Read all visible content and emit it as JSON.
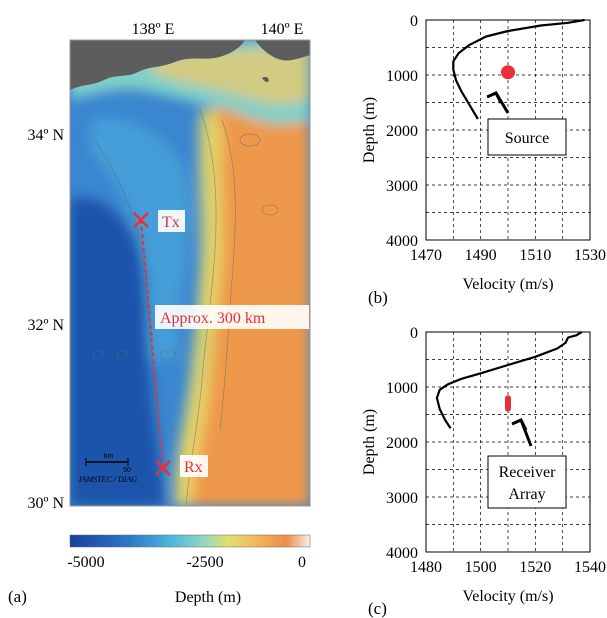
{
  "map": {
    "panel_label": "(a)",
    "lon_labels": [
      "138º E",
      "140º E"
    ],
    "lat_labels": [
      "34º N",
      "32º N",
      "30º N"
    ],
    "tx_label": "Tx",
    "rx_label": "Rx",
    "distance_label": "Approx. 300 km",
    "credit": "JAMSTEC / DIAG",
    "scale_unit": "km",
    "scale_value": "50",
    "colorbar": {
      "ticks": [
        "-5000",
        "-2500",
        "0"
      ],
      "label": "Depth (m)"
    },
    "colors": {
      "deep": "#1f4fa8",
      "mid": "#4ba3d8",
      "shelf": "#7fd0c9",
      "yellow": "#e7de6a",
      "orange": "#ef9a4a",
      "land": "#5f5f5f",
      "marker": "#e8303a"
    }
  },
  "chart_data": [
    {
      "type": "line",
      "panel_label": "(b)",
      "xlabel": "Velocity (m/s)",
      "ylabel": "Depth (m)",
      "xlim": [
        1470,
        1530
      ],
      "ylim": [
        4000,
        0
      ],
      "xticks": [
        "1470",
        "1490",
        "1510",
        "1530"
      ],
      "yticks": [
        "0",
        "1000",
        "2000",
        "3000",
        "4000"
      ],
      "grid": true,
      "series": [
        {
          "x": [
            1528,
            1522,
            1512,
            1500,
            1492,
            1486,
            1482,
            1480,
            1480,
            1481,
            1483,
            1486,
            1489
          ],
          "y": [
            0,
            50,
            100,
            200,
            300,
            450,
            600,
            750,
            900,
            1100,
            1300,
            1550,
            1800
          ]
        }
      ],
      "markers": [
        {
          "x": 1500,
          "y": 950,
          "label": "Source"
        }
      ]
    },
    {
      "type": "line",
      "panel_label": "(c)",
      "xlabel": "Velocity (m/s)",
      "ylabel": "Depth (m)",
      "xlim": [
        1480,
        1540
      ],
      "ylim": [
        4000,
        0
      ],
      "xticks": [
        "1480",
        "1500",
        "1520",
        "1540"
      ],
      "yticks": [
        "0",
        "1000",
        "2000",
        "3000",
        "4000"
      ],
      "grid": true,
      "series": [
        {
          "x": [
            1537,
            1535,
            1532,
            1531,
            1528,
            1520,
            1510,
            1500,
            1493,
            1488,
            1485,
            1484,
            1485,
            1487,
            1489
          ],
          "y": [
            0,
            60,
            100,
            200,
            300,
            450,
            600,
            750,
            850,
            950,
            1050,
            1200,
            1400,
            1600,
            1750
          ]
        }
      ],
      "markers": [
        {
          "x": 1510,
          "y_range": [
            1150,
            1450
          ],
          "label": "Receiver Array"
        }
      ]
    }
  ]
}
